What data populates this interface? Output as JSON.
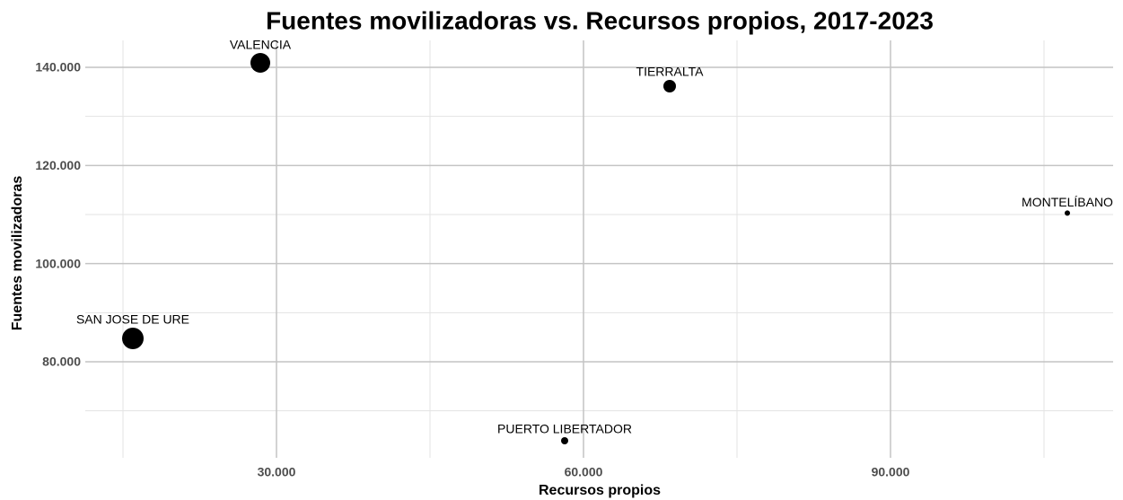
{
  "chart_data": {
    "type": "scatter",
    "title": "Fuentes movilizadoras vs. Recursos propios, 2017-2023",
    "xlabel": "Recursos propios",
    "ylabel": "Fuentes movilizadoras",
    "labels": [
      "VALENCIA",
      "TIERRALTA",
      "MONTELÍBANO",
      "SAN JOSE DE URE",
      "PUERTO LIBERTADOR"
    ],
    "x": [
      28421,
      68421,
      107281,
      15965,
      58158
    ],
    "y": [
      140915,
      136159,
      110306,
      84756,
      63904
    ],
    "sizes": [
      121,
      49,
      9,
      144,
      16
    ],
    "color": "#000000",
    "xlim": [
      11316,
      111754
    ],
    "ylim": [
      60428,
      145487
    ],
    "xticks": [
      {
        "value": 30000,
        "label": "30.000"
      },
      {
        "value": 60000,
        "label": "60.000"
      },
      {
        "value": 90000,
        "label": "90.000"
      }
    ],
    "yticks": [
      {
        "value": 80000,
        "label": "80.000"
      },
      {
        "value": 100000,
        "label": "100.000"
      },
      {
        "value": 120000,
        "label": "120.000"
      },
      {
        "value": 140000,
        "label": "140.000"
      }
    ],
    "xminor": [
      15000,
      45000,
      75000,
      105000
    ],
    "yminor": [
      70000,
      90000,
      110000,
      130000
    ],
    "grid": true
  }
}
